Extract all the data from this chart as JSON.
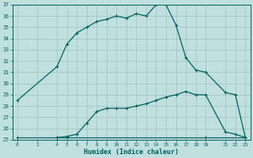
{
  "xlabel": "Humidex (Indice chaleur)",
  "bg_color": "#c0e0e0",
  "grid_color": "#a0c8c8",
  "line_color": "#005f5f",
  "line1_x": [
    0,
    4,
    5,
    6,
    7,
    8,
    9,
    10,
    11,
    12,
    13,
    14,
    15,
    16,
    17,
    18,
    19,
    21,
    22,
    23
  ],
  "line1_y": [
    28.5,
    31.5,
    33.5,
    34.5,
    35.0,
    35.5,
    35.7,
    36.0,
    35.8,
    36.2,
    36.0,
    37.0,
    37.0,
    35.2,
    32.3,
    31.2,
    31.0,
    29.2,
    29.0,
    25.2
  ],
  "line2_x": [
    4,
    5,
    6,
    7,
    8,
    9,
    10,
    11,
    12,
    13,
    14,
    15,
    16,
    17,
    18,
    19,
    21,
    22,
    23
  ],
  "line2_y": [
    25.2,
    25.3,
    25.5,
    26.5,
    27.5,
    27.8,
    27.8,
    27.8,
    28.0,
    28.2,
    28.5,
    28.8,
    29.0,
    29.3,
    29.0,
    29.0,
    25.7,
    25.5,
    25.2
  ],
  "line3_x": [
    0,
    4,
    5,
    19,
    23
  ],
  "line3_y": [
    25.2,
    25.2,
    25.2,
    25.2,
    25.2
  ],
  "xlim": [
    -0.5,
    23.5
  ],
  "ylim": [
    25,
    37
  ],
  "yticks": [
    25,
    26,
    27,
    28,
    29,
    30,
    31,
    32,
    33,
    34,
    35,
    36,
    37
  ],
  "xticks": [
    0,
    2,
    4,
    5,
    6,
    7,
    8,
    9,
    10,
    11,
    12,
    13,
    14,
    15,
    16,
    17,
    18,
    19,
    21,
    22,
    23
  ],
  "marker_size": 2.5,
  "line_width": 0.9,
  "tick_fontsize": 4.5,
  "xlabel_fontsize": 6.0
}
